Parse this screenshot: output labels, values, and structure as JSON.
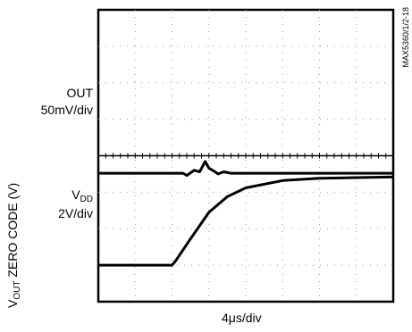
{
  "chart_data": [
    {
      "type": "line",
      "channel_label": "OUT",
      "scale": "50mV/div",
      "trace": {
        "x": [
          0,
          1,
          2,
          2.3,
          2.4,
          2.6,
          2.75,
          2.9,
          3,
          3.1,
          3.25,
          3.4,
          3.6,
          4,
          8
        ],
        "y": [
          3.52,
          3.52,
          3.52,
          3.52,
          3.46,
          3.6,
          3.56,
          3.84,
          3.66,
          3.6,
          3.5,
          3.56,
          3.52,
          3.52,
          3.52
        ]
      }
    },
    {
      "type": "line",
      "channel_label": "V",
      "channel_label_sub": "DD",
      "scale": "2V/div",
      "trace": {
        "x": [
          0,
          1,
          2,
          2.1,
          2.5,
          3,
          3.5,
          4,
          5,
          6,
          7,
          8
        ],
        "y": [
          1,
          1,
          1,
          1.12,
          1.72,
          2.45,
          2.88,
          3.12,
          3.32,
          3.38,
          3.4,
          3.42
        ]
      }
    }
  ],
  "axes": {
    "divisions_x": 8,
    "divisions_y": 8,
    "x_scale_label": "4μs/div",
    "y_axis_label_prefix": "V",
    "y_axis_label_sub": "OUT",
    "y_axis_label_rest": " ZERO CODE (V)"
  },
  "figure_id": "MAX5360/1/2-18"
}
